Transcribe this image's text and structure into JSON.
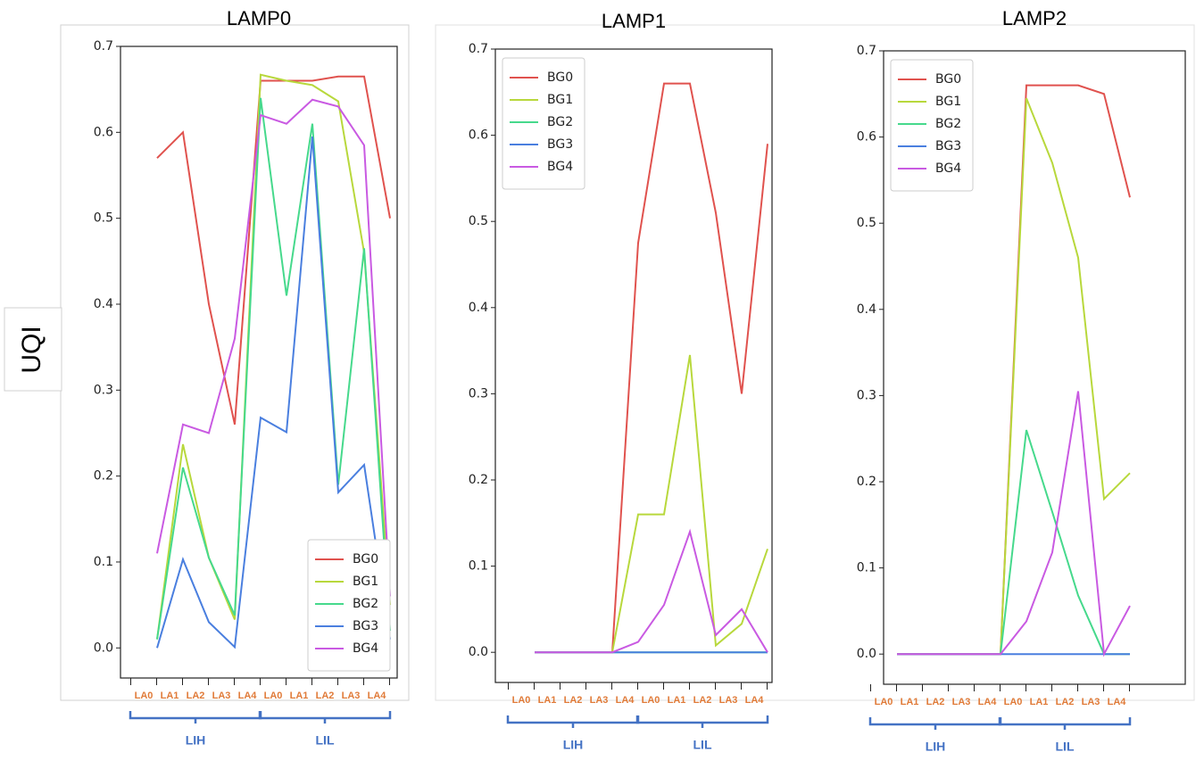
{
  "ylabel": "UQI",
  "chart_data": [
    {
      "type": "line",
      "title": "LAMP0",
      "categories": [
        "LA0",
        "LA1",
        "LA2",
        "LA3",
        "LA4",
        "LA0",
        "LA1",
        "LA2",
        "LA3",
        "LA4"
      ],
      "groups": [
        "LIH",
        "LIL"
      ],
      "ylim": [
        -0.035,
        0.7
      ],
      "yticks": [
        {
          "value": 0,
          "label": "0.0"
        },
        0.1,
        0.2,
        0.3,
        0.4,
        0.5,
        0.6,
        0.7
      ],
      "legend": "lower right",
      "series": [
        {
          "name": "BG0",
          "color": "#e0524e",
          "values": [
            0.57,
            0.6,
            0.4,
            0.26,
            0.66,
            0.66,
            0.66,
            0.665,
            0.665,
            0.5
          ]
        },
        {
          "name": "BG1",
          "color": "#b8d83c",
          "values": [
            0.01,
            0.237,
            0.105,
            0.033,
            0.667,
            0.66,
            0.655,
            0.636,
            0.46,
            0.05
          ]
        },
        {
          "name": "BG2",
          "color": "#46d98c",
          "values": [
            0.01,
            0.21,
            0.105,
            0.038,
            0.64,
            0.41,
            0.61,
            0.19,
            0.465,
            0.02
          ]
        },
        {
          "name": "BG3",
          "color": "#4a7fdf",
          "values": [
            0.0,
            0.103,
            0.03,
            0.001,
            0.268,
            0.251,
            0.595,
            0.181,
            0.213,
            0.01
          ]
        },
        {
          "name": "BG4",
          "color": "#c95ae2",
          "values": [
            0.11,
            0.26,
            0.25,
            0.36,
            0.62,
            0.61,
            0.638,
            0.63,
            0.585,
            0.06
          ]
        }
      ]
    },
    {
      "type": "line",
      "title": "LAMP1",
      "categories": [
        "LA0",
        "LA1",
        "LA2",
        "LA3",
        "LA4",
        "LA0",
        "LA1",
        "LA2",
        "LA3",
        "LA4"
      ],
      "groups": [
        "LIH",
        "LIL"
      ],
      "ylim": [
        -0.035,
        0.7
      ],
      "yticks": [
        {
          "value": 0,
          "label": "0.0"
        },
        0.1,
        0.2,
        0.3,
        0.4,
        0.5,
        0.6,
        0.7
      ],
      "legend": "upper left",
      "series": [
        {
          "name": "BG0",
          "color": "#e0524e",
          "values": [
            0,
            0,
            0,
            0,
            0.475,
            0.66,
            0.66,
            0.51,
            0.3,
            0.59
          ]
        },
        {
          "name": "BG1",
          "color": "#b8d83c",
          "values": [
            0,
            0,
            0,
            0,
            0.16,
            0.16,
            0.345,
            0.008,
            0.033,
            0.12
          ]
        },
        {
          "name": "BG2",
          "color": "#46d98c",
          "values": [
            0,
            0,
            0,
            0,
            0,
            0,
            0,
            0,
            0,
            0
          ]
        },
        {
          "name": "BG3",
          "color": "#4a7fdf",
          "values": [
            0,
            0,
            0,
            0,
            0,
            0,
            0,
            0,
            0,
            0
          ]
        },
        {
          "name": "BG4",
          "color": "#c95ae2",
          "values": [
            0,
            0,
            0,
            0,
            0.012,
            0.055,
            0.14,
            0.02,
            0.05,
            0.0
          ]
        }
      ]
    },
    {
      "type": "line",
      "title": "LAMP2",
      "categories": [
        "LA0",
        "LA1",
        "LA2",
        "LA3",
        "LA4",
        "LA0",
        "LA1",
        "LA2",
        "LA3",
        "LA4"
      ],
      "groups": [
        "LIH",
        "LIL"
      ],
      "ylim": [
        -0.035,
        0.7
      ],
      "yticks": [
        {
          "value": 0,
          "label": "0.0"
        },
        0.1,
        0.2,
        0.3,
        0.4,
        0.5,
        0.6,
        0.7
      ],
      "legend": "upper left",
      "series": [
        {
          "name": "BG0",
          "color": "#e0524e",
          "values": [
            0,
            0,
            0,
            0,
            0,
            0.66,
            0.66,
            0.66,
            0.65,
            0.53
          ]
        },
        {
          "name": "BG1",
          "color": "#b8d83c",
          "values": [
            0,
            0,
            0,
            0,
            0,
            0.645,
            0.57,
            0.46,
            0.18,
            0.21
          ]
        },
        {
          "name": "BG2",
          "color": "#46d98c",
          "values": [
            0,
            0,
            0,
            0,
            0,
            0.26,
            0.165,
            0.068,
            0.0,
            0.0
          ]
        },
        {
          "name": "BG3",
          "color": "#4a7fdf",
          "values": [
            0,
            0,
            0,
            0,
            0,
            0,
            0,
            0,
            0,
            0
          ]
        },
        {
          "name": "BG4",
          "color": "#c95ae2",
          "values": [
            0,
            0,
            0,
            0,
            0,
            0.038,
            0.118,
            0.305,
            0.0,
            0.056
          ]
        }
      ]
    }
  ]
}
